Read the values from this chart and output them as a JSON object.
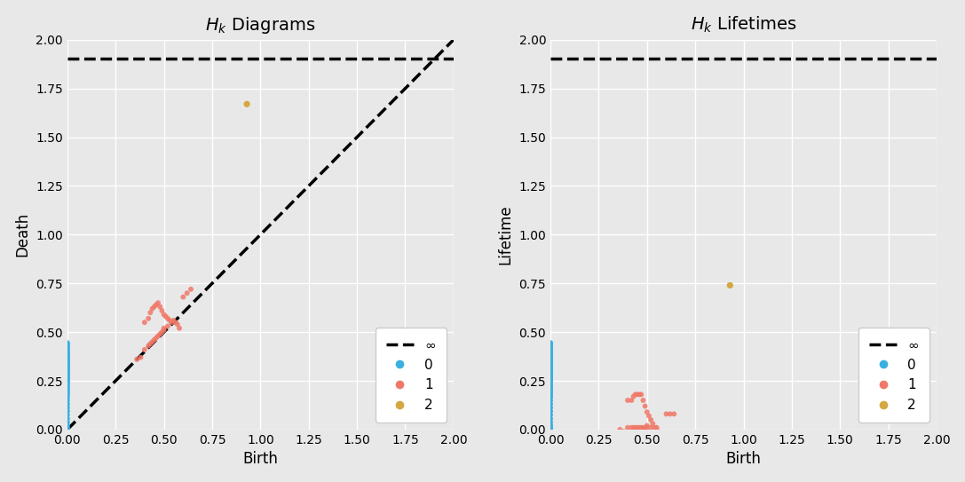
{
  "title_left": "$H_k$ Diagrams",
  "title_right": "$H_k$ Lifetimes",
  "xlabel": "Birth",
  "ylabel_left": "Death",
  "ylabel_right": "Lifetime",
  "xlim": [
    0.0,
    2.0
  ],
  "ylim": [
    0.0,
    2.0
  ],
  "inf_line_y": 1.905,
  "bg_color": "#e8e8e8",
  "grid_color": "#ffffff",
  "colors": {
    "0": "#3ab0e0",
    "1": "#f07868",
    "2": "#d4a840"
  },
  "h0_birth": [
    0.0,
    0.0,
    0.0,
    0.0,
    0.0,
    0.0,
    0.0,
    0.0,
    0.0,
    0.0,
    0.0,
    0.0,
    0.0,
    0.0,
    0.0,
    0.0,
    0.0,
    0.0,
    0.0,
    0.0,
    0.0,
    0.0,
    0.0,
    0.0,
    0.0,
    0.0,
    0.0,
    0.0,
    0.0,
    0.0,
    0.0,
    0.0,
    0.0,
    0.0,
    0.0,
    0.0,
    0.0,
    0.0,
    0.0,
    0.0,
    0.0,
    0.0,
    0.0,
    0.0,
    0.0,
    0.0,
    0.0,
    0.0,
    0.0,
    0.0
  ],
  "h0_death": [
    0.445,
    0.438,
    0.43,
    0.422,
    0.415,
    0.408,
    0.4,
    0.393,
    0.386,
    0.379,
    0.372,
    0.366,
    0.36,
    0.354,
    0.348,
    0.342,
    0.336,
    0.33,
    0.324,
    0.318,
    0.312,
    0.306,
    0.3,
    0.294,
    0.288,
    0.282,
    0.276,
    0.27,
    0.264,
    0.258,
    0.252,
    0.246,
    0.238,
    0.228,
    0.218,
    0.208,
    0.198,
    0.188,
    0.176,
    0.164,
    0.148,
    0.13,
    0.112,
    0.094,
    0.075,
    0.056,
    0.038,
    0.022,
    0.01,
    0.003
  ],
  "h1_birth": [
    0.36,
    0.38,
    0.4,
    0.4,
    0.42,
    0.42,
    0.43,
    0.43,
    0.44,
    0.44,
    0.45,
    0.45,
    0.46,
    0.46,
    0.47,
    0.47,
    0.48,
    0.48,
    0.49,
    0.49,
    0.5,
    0.5,
    0.5,
    0.51,
    0.52,
    0.52,
    0.53,
    0.54,
    0.55,
    0.56,
    0.57,
    0.58,
    0.6,
    0.62,
    0.64
  ],
  "h1_death": [
    0.36,
    0.37,
    0.55,
    0.41,
    0.57,
    0.43,
    0.6,
    0.44,
    0.62,
    0.45,
    0.63,
    0.46,
    0.64,
    0.47,
    0.65,
    0.48,
    0.63,
    0.49,
    0.61,
    0.5,
    0.59,
    0.51,
    0.52,
    0.58,
    0.57,
    0.53,
    0.56,
    0.55,
    0.56,
    0.55,
    0.54,
    0.52,
    0.68,
    0.7,
    0.72
  ],
  "h2_birth": [
    0.93
  ],
  "h2_death": [
    1.67
  ],
  "marker_size": 18,
  "xticks": [
    0.0,
    0.25,
    0.5,
    0.75,
    1.0,
    1.25,
    1.5,
    1.75,
    2.0
  ],
  "yticks": [
    0.0,
    0.25,
    0.5,
    0.75,
    1.0,
    1.25,
    1.5,
    1.75,
    2.0
  ],
  "tick_labels": [
    "0.00",
    "0.25",
    "0.50",
    "0.75",
    "1.00",
    "1.25",
    "1.50",
    "1.75",
    "2.00"
  ]
}
